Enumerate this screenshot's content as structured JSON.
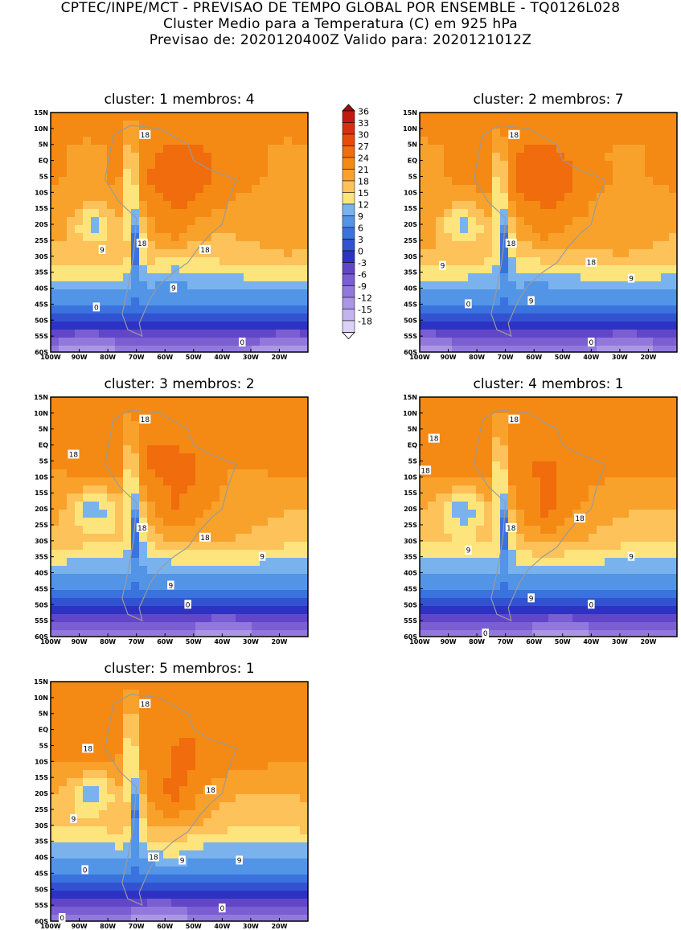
{
  "header": {
    "line1": "CPTEC/INPE/MCT - PREVISAO DE TEMPO GLOBAL POR ENSEMBLE - TQ0126L028",
    "line2": "Cluster Medio para a Temperatura (C) em 925 hPa",
    "line3": "Previsao de: 2020120400Z   Valido para: 2020121012Z"
  },
  "axes": {
    "lat_labels": [
      "15N",
      "10N",
      "5N",
      "EQ",
      "5S",
      "10S",
      "15S",
      "20S",
      "25S",
      "30S",
      "35S",
      "40S",
      "45S",
      "50S",
      "55S",
      "60S"
    ],
    "lon_labels": [
      "100W",
      "90W",
      "80W",
      "70W",
      "60W",
      "50W",
      "40W",
      "30W",
      "20W"
    ]
  },
  "colorbar": {
    "labels": [
      "36",
      "33",
      "30",
      "27",
      "24",
      "21",
      "18",
      "15",
      "12",
      "9",
      "6",
      "3",
      "0",
      "-3",
      "-6",
      "-9",
      "-12",
      "-15",
      "-18"
    ],
    "colors": [
      "#ffffff",
      "#dcd2f5",
      "#c4b4ee",
      "#ab96e6",
      "#9278dc",
      "#7a5ed2",
      "#6246c8",
      "#2d32c2",
      "#3252d2",
      "#3a72de",
      "#5294e6",
      "#7ab2ee",
      "#fde47c",
      "#fdc25a",
      "#f8a22c",
      "#f48a14",
      "#f06c0c",
      "#e94a0c",
      "#d82e10",
      "#c21a12",
      "#a20c10"
    ]
  },
  "panels": [
    {
      "title": "cluster: 1   membros: 4",
      "labels": [
        [
          "18",
          -67,
          8
        ],
        [
          "18",
          -68,
          -26
        ],
        [
          "18",
          -46,
          -28
        ],
        [
          "9",
          -82,
          -28
        ],
        [
          "9",
          -57,
          -40
        ],
        [
          "0",
          -84,
          -46
        ],
        [
          "0",
          -33,
          -57
        ]
      ]
    },
    {
      "title": "cluster: 2   membros: 7",
      "labels": [
        [
          "18",
          -67,
          8
        ],
        [
          "18",
          -68,
          -26
        ],
        [
          "18",
          -40,
          -32
        ],
        [
          "9",
          -92,
          -33
        ],
        [
          "9",
          -61,
          -44
        ],
        [
          "9",
          -26,
          -37
        ],
        [
          "0",
          -83,
          -45
        ],
        [
          "0",
          -40,
          -57
        ]
      ]
    },
    {
      "title": "cluster: 3   membros: 2",
      "labels": [
        [
          "18",
          -67,
          8
        ],
        [
          "18",
          -92,
          -3
        ],
        [
          "18",
          -68,
          -26
        ],
        [
          "18",
          -46,
          -29
        ],
        [
          "9",
          -58,
          -44
        ],
        [
          "9",
          -26,
          -35
        ],
        [
          "0",
          -52,
          -50
        ]
      ]
    },
    {
      "title": "cluster: 4   membros: 1",
      "labels": [
        [
          "18",
          -67,
          8
        ],
        [
          "18",
          -95,
          2
        ],
        [
          "18",
          -98,
          -8
        ],
        [
          "18",
          -68,
          -26
        ],
        [
          "18",
          -44,
          -23
        ],
        [
          "9",
          -83,
          -33
        ],
        [
          "9",
          -61,
          -48
        ],
        [
          "9",
          -26,
          -35
        ],
        [
          "0",
          -40,
          -50
        ],
        [
          "0",
          -77,
          -59
        ]
      ]
    },
    {
      "title": "cluster: 5   membros: 1",
      "labels": [
        [
          "18",
          -67,
          8
        ],
        [
          "18",
          -87,
          -6
        ],
        [
          "18",
          -44,
          -19
        ],
        [
          "18",
          -64,
          -40
        ],
        [
          "9",
          -92,
          -28
        ],
        [
          "9",
          -54,
          -41
        ],
        [
          "9",
          -34,
          -41
        ],
        [
          "0",
          -88,
          -44
        ],
        [
          "0",
          -40,
          -56
        ],
        [
          "0",
          -96,
          -59
        ]
      ]
    }
  ]
}
